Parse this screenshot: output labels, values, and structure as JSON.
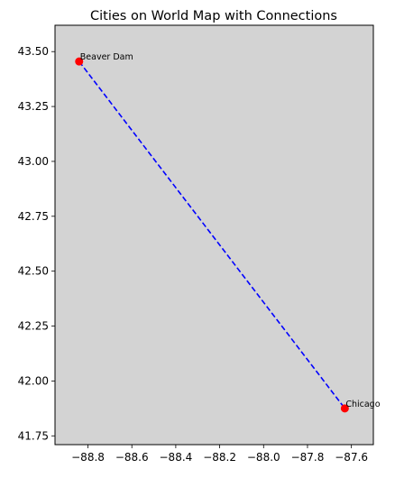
{
  "chart_data": {
    "type": "scatter",
    "title": "Cities on World Map with Connections",
    "xlabel": "",
    "ylabel": "",
    "xlim": [
      -88.95,
      -87.5
    ],
    "ylim": [
      41.71,
      43.62
    ],
    "x_ticks": [
      -88.8,
      -88.6,
      -88.4,
      -88.2,
      -88.0,
      -87.8,
      -87.6
    ],
    "x_tick_labels": [
      "−88.8",
      "−88.6",
      "−88.4",
      "−88.2",
      "−88.0",
      "−87.8",
      "−87.6"
    ],
    "y_ticks": [
      41.75,
      42.0,
      42.25,
      42.5,
      42.75,
      43.0,
      43.25,
      43.5
    ],
    "y_tick_labels": [
      "41.75",
      "42.00",
      "42.25",
      "42.50",
      "42.75",
      "43.00",
      "43.25",
      "43.50"
    ],
    "grid": false,
    "background_color": "#d3d3d3",
    "point_color": "#ff0000",
    "line_color": "#0000ff",
    "line_style": "dashed",
    "cities": [
      {
        "label": "Beaver Dam",
        "x": -88.84,
        "y": 43.455
      },
      {
        "label": "Chicago",
        "x": -87.63,
        "y": 41.875
      }
    ],
    "connections": [
      {
        "from": 0,
        "to": 1
      }
    ]
  }
}
